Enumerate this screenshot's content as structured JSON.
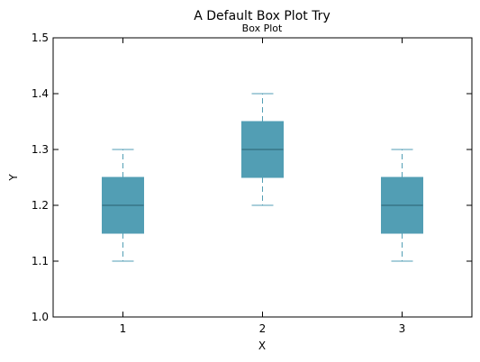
{
  "chart_data": {
    "type": "box",
    "title": "A Default Box Plot Try",
    "subtitle": "Box Plot",
    "xlabel": "X",
    "ylabel": "Y",
    "xlim": [
      0.5,
      3.5
    ],
    "ylim": [
      1.0,
      1.5
    ],
    "x_ticks": [
      "1",
      "2",
      "3"
    ],
    "y_ticks": [
      "1.0",
      "1.1",
      "1.2",
      "1.3",
      "1.4",
      "1.5"
    ],
    "grid": false,
    "boxes": [
      {
        "x": 1,
        "whisker_low": 1.1,
        "q1": 1.15,
        "median": 1.2,
        "q3": 1.25,
        "whisker_high": 1.3
      },
      {
        "x": 2,
        "whisker_low": 1.2,
        "q1": 1.25,
        "median": 1.3,
        "q3": 1.35,
        "whisker_high": 1.4
      },
      {
        "x": 3,
        "whisker_low": 1.1,
        "q1": 1.15,
        "median": 1.2,
        "q3": 1.25,
        "whisker_high": 1.3
      }
    ],
    "colors": {
      "box_fill": "#529eb4",
      "median_line": "#2b6070",
      "whisker": "#529eb4"
    }
  }
}
